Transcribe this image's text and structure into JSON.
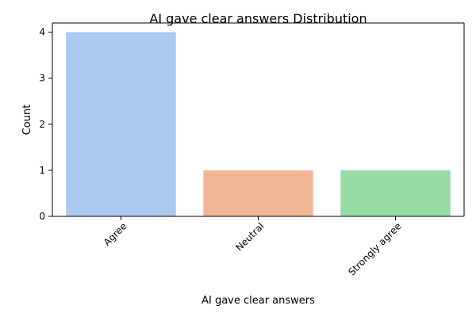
{
  "chart_data": {
    "type": "bar",
    "title": "AI gave clear answers Distribution",
    "xlabel": "AI gave clear answers",
    "ylabel": "Count",
    "categories": [
      "Agree",
      "Neutral",
      "Strongly agree"
    ],
    "values": [
      4,
      1,
      1
    ],
    "colors": [
      "#abc9ee",
      "#f1b794",
      "#98dba7"
    ],
    "ylim": [
      0,
      4.2
    ],
    "yticks": [
      "0",
      "1",
      "2",
      "3",
      "4"
    ],
    "grid": false,
    "legend": "none",
    "xtick_rotation_deg": 45
  }
}
